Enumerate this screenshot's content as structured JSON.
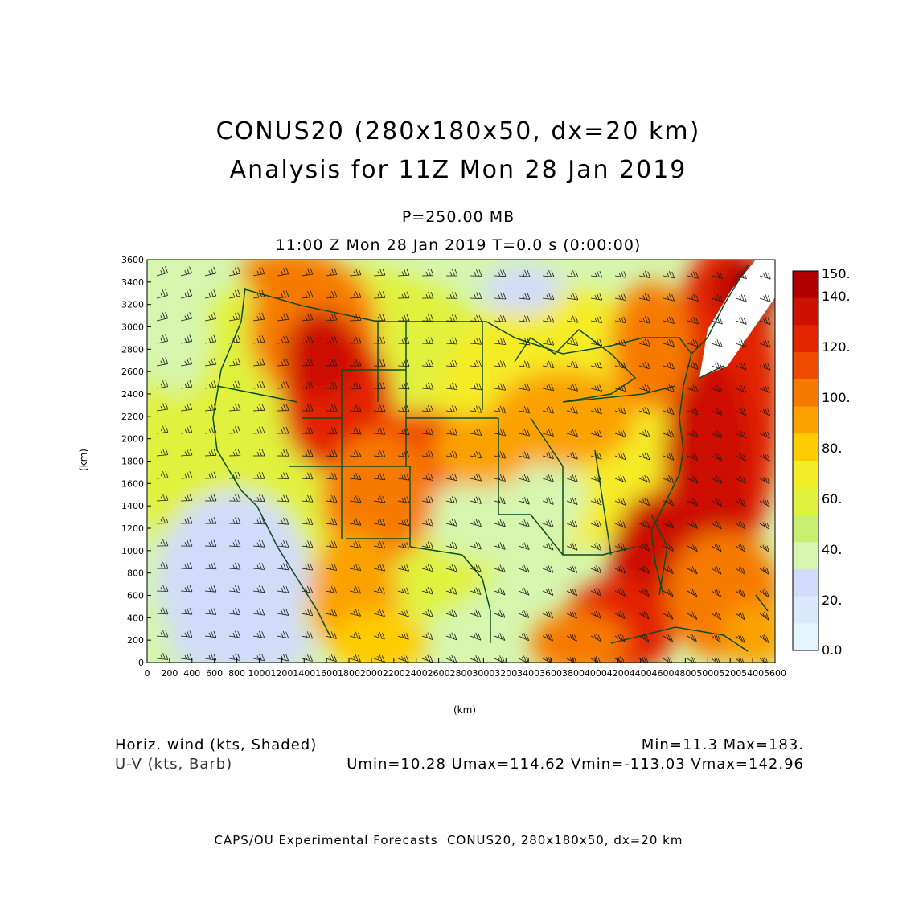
{
  "header": {
    "title_line1": "CONUS20 (280x180x50, dx=20 km)",
    "title_line2": "Analysis for 11Z Mon 28 Jan 2019",
    "level": "P=250.00 MB",
    "valid_time": "11:00 Z Mon 28 Jan 2019    T=0.0 s (0:00:00)"
  },
  "axes": {
    "x_unit": "(km)",
    "y_unit": "(km)",
    "x_ticks": [
      "0",
      "200",
      "400",
      "600",
      "800",
      "1000",
      "1200",
      "1400",
      "1600",
      "1800",
      "2000",
      "2200",
      "2400",
      "2600",
      "2800",
      "3000",
      "3200",
      "3400",
      "3600",
      "3800",
      "4000",
      "4200",
      "4400",
      "4600",
      "4800",
      "5000",
      "5200",
      "5400",
      "5600"
    ],
    "y_ticks": [
      "0",
      "200",
      "400",
      "600",
      "800",
      "1000",
      "1200",
      "1400",
      "1600",
      "1800",
      "2000",
      "2200",
      "2400",
      "2600",
      "2800",
      "3000",
      "3200",
      "3400",
      "3600"
    ],
    "xlim": [
      0,
      5600
    ],
    "ylim": [
      0,
      3600
    ]
  },
  "colorbar": {
    "labels": [
      "150.",
      "140.",
      "120.",
      "100.",
      "80.",
      "60.",
      "40.",
      "20.",
      "0.0"
    ],
    "colors": [
      "#b20000",
      "#cc1100",
      "#e32400",
      "#f04a00",
      "#f77a00",
      "#fba200",
      "#ffcc00",
      "#f5ec28",
      "#e0f23c",
      "#c8f070",
      "#d6f5ae",
      "#d2dcfa",
      "#dce8fb",
      "#e6f4fd"
    ]
  },
  "info": {
    "left_line1": "Horiz. wind (kts, Shaded)",
    "left_line2": "U-V (kts, Barb)",
    "right_line1": "Min=11.3 Max=183.",
    "right_line2": "Umin=10.28 Umax=114.62 Vmin=-113.03 Vmax=142.96"
  },
  "footer": "CAPS/OU Experimental Forecasts  CONUS20, 280x180x50, dx=20 km"
}
